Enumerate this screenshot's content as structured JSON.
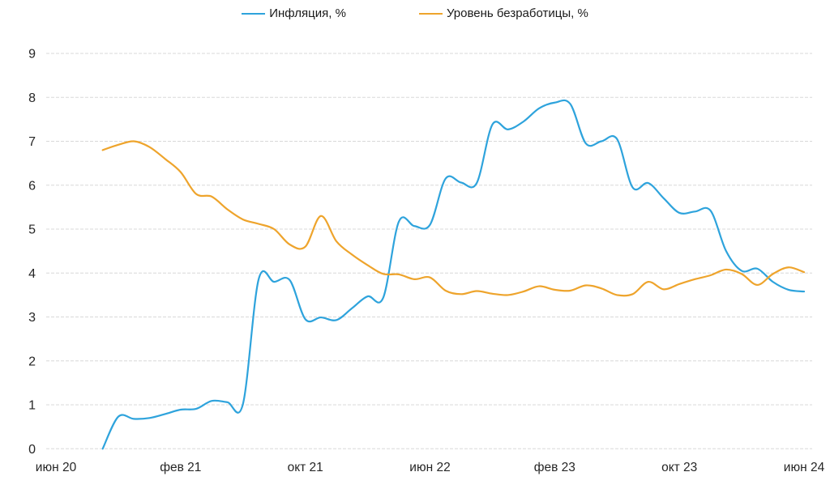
{
  "legend": [
    {
      "label": "Инфляция, %",
      "color": "#2EA3DC"
    },
    {
      "label": "Уровень безработицы, %",
      "color": "#EEA42C"
    }
  ],
  "chart_data": {
    "type": "line",
    "smooth": true,
    "grid": "horizontal-dashed",
    "legend_position": "top-center",
    "ylim": [
      0,
      9
    ],
    "y_ticks": [
      0,
      1,
      2,
      3,
      4,
      5,
      6,
      7,
      8,
      9
    ],
    "x_axis_note": "months; offset 0 = июн 20, offset 48 = июн 24",
    "x_ticks": [
      {
        "label": "июн 20",
        "month": 0
      },
      {
        "label": "фев 21",
        "month": 8
      },
      {
        "label": "окт 21",
        "month": 16
      },
      {
        "label": "июн 22",
        "month": 24
      },
      {
        "label": "фев 23",
        "month": 32
      },
      {
        "label": "окт 23",
        "month": 40
      },
      {
        "label": "июн 24",
        "month": 48
      }
    ],
    "series": [
      {
        "name": "Инфляция, %",
        "color": "#2EA3DC",
        "start_month": 3,
        "values": [
          0.0,
          0.73,
          0.68,
          0.7,
          0.79,
          0.89,
          0.91,
          1.09,
          1.06,
          1.02,
          3.85,
          3.8,
          3.84,
          2.95,
          2.99,
          2.93,
          3.2,
          3.47,
          3.44,
          5.17,
          5.07,
          5.1,
          6.15,
          6.06,
          6.05,
          7.38,
          7.27,
          7.45,
          7.75,
          7.88,
          7.85,
          6.95,
          7.0,
          7.05,
          5.95,
          6.05,
          5.7,
          5.37,
          5.4,
          5.42,
          4.5,
          4.05,
          4.1,
          3.8,
          3.62,
          3.58
        ]
      },
      {
        "name": "Уровень безработицы, %",
        "color": "#EEA42C",
        "start_month": 3,
        "values": [
          6.8,
          6.92,
          7.0,
          6.87,
          6.6,
          6.3,
          5.8,
          5.74,
          5.45,
          5.22,
          5.12,
          5.0,
          4.65,
          4.6,
          5.3,
          4.72,
          4.42,
          4.18,
          3.98,
          3.97,
          3.86,
          3.9,
          3.6,
          3.52,
          3.59,
          3.53,
          3.5,
          3.58,
          3.7,
          3.62,
          3.6,
          3.72,
          3.65,
          3.5,
          3.52,
          3.8,
          3.63,
          3.75,
          3.86,
          3.95,
          4.08,
          3.98,
          3.73,
          3.98,
          4.13,
          4.02
        ]
      }
    ]
  }
}
